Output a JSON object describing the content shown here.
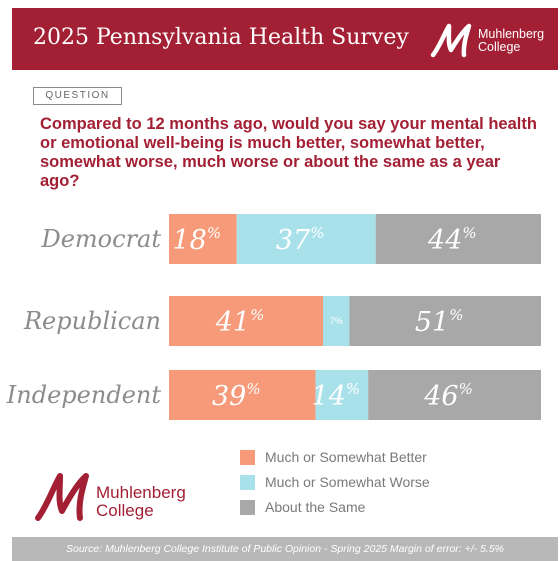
{
  "header": {
    "title": "2025 Pennsylvania Health Survey",
    "logo_line1": "Muhlenberg",
    "logo_line2": "College"
  },
  "question": {
    "label": "QUESTION",
    "text": "Compared to 12 months ago, would you say your mental health or emotional well-being is much better, somewhat better, somewhat worse, much worse or about the same as a year ago?"
  },
  "colors": {
    "brand": "#a31f34",
    "better": "#f79a7a",
    "worse": "#a9e1ea",
    "same": "#a8a8a8",
    "label": "#8c8c8c"
  },
  "chart_data": {
    "type": "bar",
    "stacked": true,
    "orientation": "horizontal",
    "categories": [
      "Democrat",
      "Republican",
      "Independent"
    ],
    "series": [
      {
        "name": "Much or Somewhat Better",
        "values": [
          18,
          41,
          39
        ]
      },
      {
        "name": "Much or Somewhat Worse",
        "values": [
          37,
          7,
          14
        ]
      },
      {
        "name": "About the Same",
        "values": [
          44,
          51,
          46
        ]
      }
    ],
    "unit": "%"
  },
  "legend": [
    {
      "label": "Much or Somewhat Better"
    },
    {
      "label": "Much or Somewhat Worse"
    },
    {
      "label": "About the Same"
    }
  ],
  "footer_logo": {
    "line1": "Muhlenberg",
    "line2": "College"
  },
  "source": "Source: Muhlenberg College Institute of Public Opinion - Spring 2025 Margin of error: +/- 5.5%"
}
